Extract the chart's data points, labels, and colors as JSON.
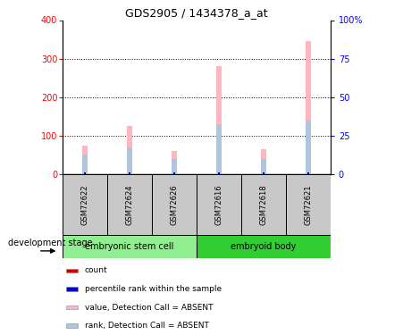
{
  "title": "GDS2905 / 1434378_a_at",
  "samples": [
    "GSM72622",
    "GSM72624",
    "GSM72626",
    "GSM72616",
    "GSM72618",
    "GSM72621"
  ],
  "value_absent": [
    75,
    125,
    60,
    280,
    65,
    345
  ],
  "rank_absent": [
    50,
    70,
    40,
    130,
    40,
    140
  ],
  "count_red": [
    4,
    4,
    4,
    4,
    4,
    4
  ],
  "percentile_blue": [
    4,
    4,
    4,
    4,
    4,
    4
  ],
  "ylim_left": [
    0,
    400
  ],
  "ylim_right": [
    0,
    100
  ],
  "yticks_left": [
    0,
    100,
    200,
    300,
    400
  ],
  "yticks_right": [
    0,
    25,
    50,
    75,
    100
  ],
  "ytick_labels_right": [
    "0",
    "25",
    "50",
    "75",
    "100%"
  ],
  "color_value_absent": "#FFB6C1",
  "color_rank_absent": "#B0C4DE",
  "color_count": "#CC0000",
  "color_percentile": "#0000CC",
  "group_label_x": "development stage",
  "group1_label": "embryonic stem cell",
  "group2_label": "embryoid body",
  "group1_color": "#90EE90",
  "group2_color": "#32CD32",
  "sample_bg_color": "#C8C8C8",
  "legend_items": [
    {
      "label": "count",
      "color": "#CC0000"
    },
    {
      "label": "percentile rank within the sample",
      "color": "#0000CC"
    },
    {
      "label": "value, Detection Call = ABSENT",
      "color": "#FFB6C1"
    },
    {
      "label": "rank, Detection Call = ABSENT",
      "color": "#B0C4DE"
    }
  ]
}
